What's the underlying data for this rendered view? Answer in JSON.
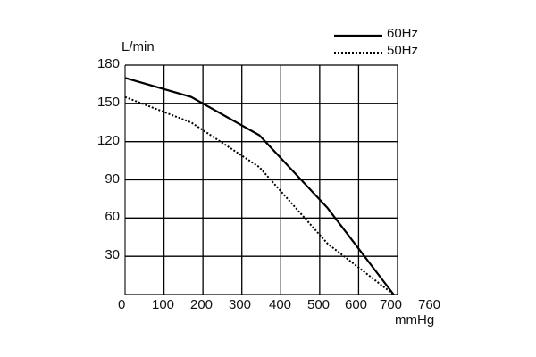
{
  "chart_data": {
    "type": "line",
    "title": "",
    "xlabel": "mmHg",
    "ylabel": "L/min",
    "xlim": [
      0,
      760
    ],
    "ylim": [
      0,
      180
    ],
    "x_ticks": [
      "0",
      "100",
      "200",
      "300",
      "400",
      "500",
      "600",
      "700",
      "760"
    ],
    "y_ticks": [
      "30",
      "60",
      "90",
      "120",
      "150",
      "180"
    ],
    "grid": true,
    "legend_position": "top-right",
    "series": [
      {
        "name": "60Hz",
        "style": "solid",
        "x": [
          0,
          170,
          345,
          520,
          690
        ],
        "y": [
          170,
          155,
          125,
          68,
          0
        ]
      },
      {
        "name": "50Hz",
        "style": "dotted",
        "x": [
          0,
          170,
          345,
          520,
          690
        ],
        "y": [
          155,
          135,
          100,
          40,
          0
        ]
      }
    ]
  },
  "legend": {
    "items": [
      {
        "label": "60Hz"
      },
      {
        "label": "50Hz"
      }
    ]
  },
  "axes": {
    "ylabel": "L/min",
    "xlabel": "mmHg"
  }
}
